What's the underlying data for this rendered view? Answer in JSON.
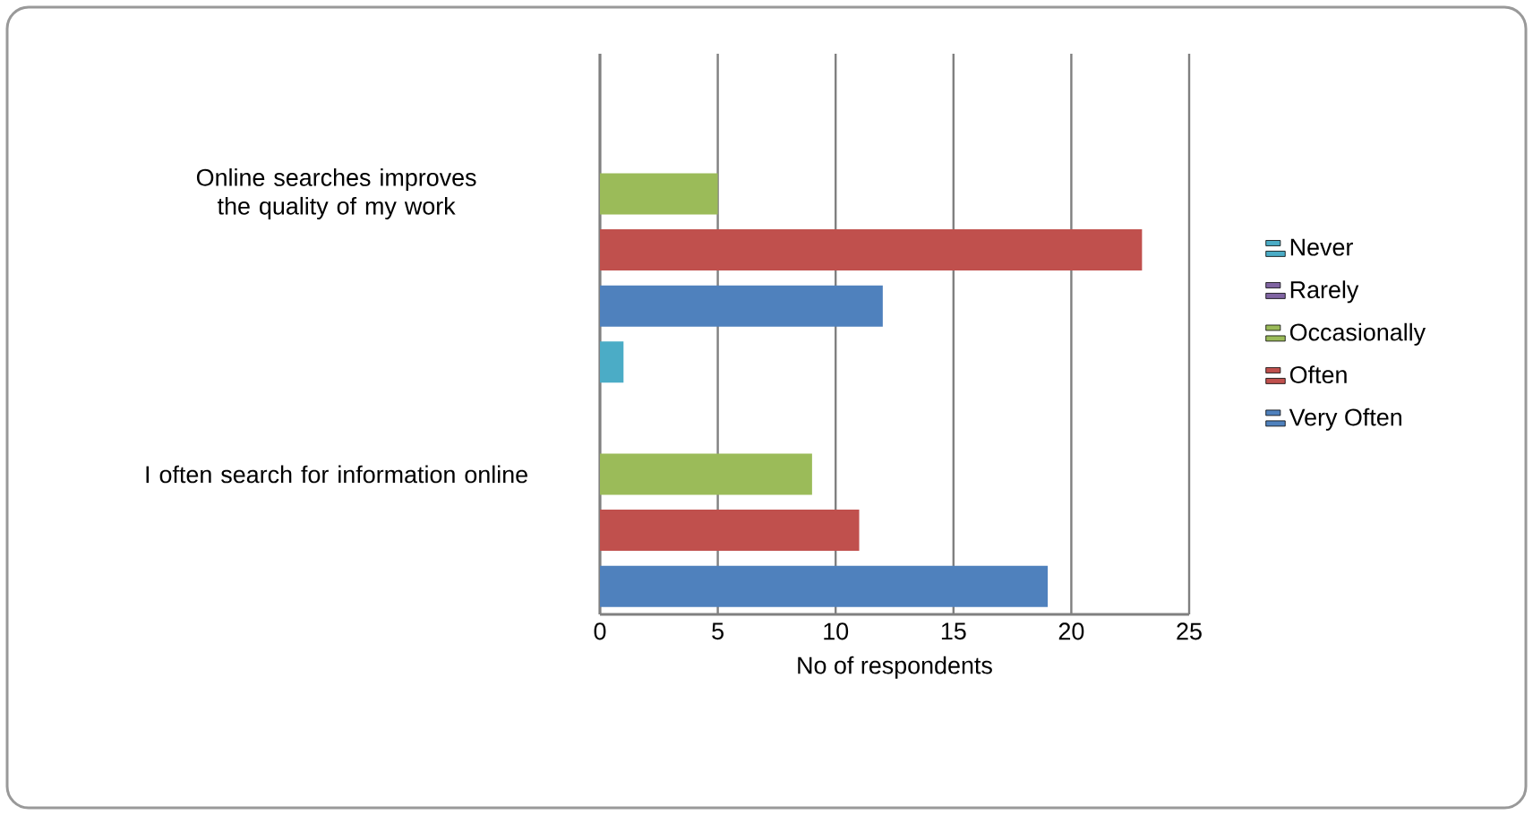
{
  "chart_data": {
    "type": "bar",
    "orientation": "horizontal",
    "categories": [
      "Online searches improves the quality of my work",
      "I often search for information online"
    ],
    "series": [
      {
        "name": "Never",
        "color": "#4bacc6",
        "values": [
          0,
          1
        ]
      },
      {
        "name": "Rarely",
        "color": "#8064a2",
        "values": [
          0,
          0
        ]
      },
      {
        "name": "Occasionally",
        "color": "#9bbb59",
        "values": [
          5,
          9
        ]
      },
      {
        "name": "Often",
        "color": "#c0504d",
        "values": [
          23,
          11
        ]
      },
      {
        "name": "Very Often",
        "color": "#4f81bd",
        "values": [
          12,
          19
        ]
      }
    ],
    "xlabel": "No of respondents",
    "xlim": [
      0,
      25
    ],
    "xticks": [
      0,
      5,
      10,
      15,
      20,
      25
    ],
    "grid": "x",
    "legend": "right"
  }
}
